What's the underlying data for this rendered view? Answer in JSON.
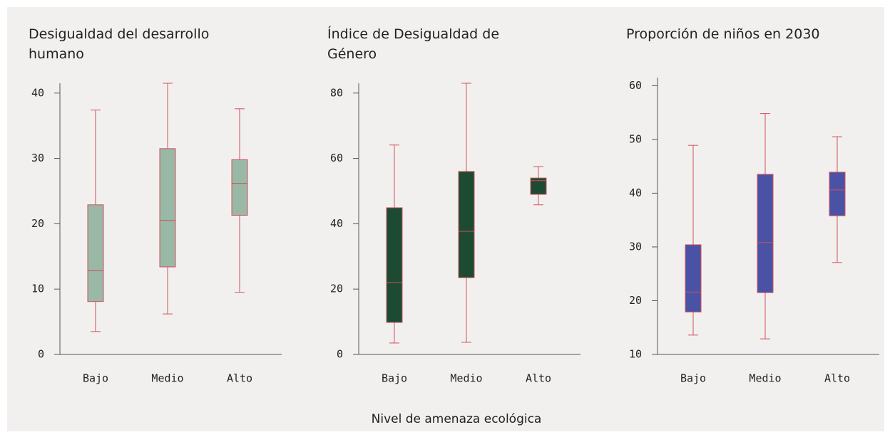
{
  "shared_xlabel": "Nivel de amenaza ecológica",
  "chart_data": [
    {
      "type": "box",
      "title": "Desigualdad del desarrollo humano",
      "categories": [
        "Bajo",
        "Medio",
        "Alto"
      ],
      "min": [
        3.5,
        6.2,
        9.5
      ],
      "q1": [
        8.1,
        13.4,
        21.3
      ],
      "median": [
        12.8,
        20.5,
        26.2
      ],
      "q3": [
        22.9,
        31.5,
        29.8
      ],
      "max": [
        37.4,
        41.5,
        37.6
      ],
      "color": "#9ab8a6",
      "line_color": "#d0525a",
      "ylim": [
        0,
        41.5
      ],
      "yticks": [
        0,
        10,
        20,
        30,
        40
      ]
    },
    {
      "type": "box",
      "title": "Índice de Desigualdad de Género",
      "categories": [
        "Bajo",
        "Medio",
        "Alto"
      ],
      "min": [
        3.5,
        3.7,
        45.8
      ],
      "q1": [
        9.8,
        23.5,
        49
      ],
      "median": [
        22,
        37.7,
        53.2
      ],
      "q3": [
        44.9,
        56,
        54
      ],
      "max": [
        64.1,
        83,
        57.5
      ],
      "color": "#1d4a33",
      "line_color": "#d0525a",
      "ylim": [
        0,
        83
      ],
      "yticks": [
        0,
        20,
        40,
        60,
        80
      ]
    },
    {
      "type": "box",
      "title": "Proporción de niños en 2030",
      "categories": [
        "Bajo",
        "Medio",
        "Alto"
      ],
      "min": [
        13.6,
        12.9,
        27.1
      ],
      "q1": [
        17.9,
        21.5,
        35.8
      ],
      "median": [
        21.6,
        30.8,
        40.6
      ],
      "q3": [
        30.4,
        43.5,
        43.9
      ],
      "max": [
        48.9,
        54.8,
        50.5
      ],
      "color": "#4a52a6",
      "line_color": "#d0525a",
      "ylim": [
        10,
        61.5
      ],
      "yticks": [
        10,
        20,
        30,
        40,
        50,
        60
      ]
    }
  ]
}
